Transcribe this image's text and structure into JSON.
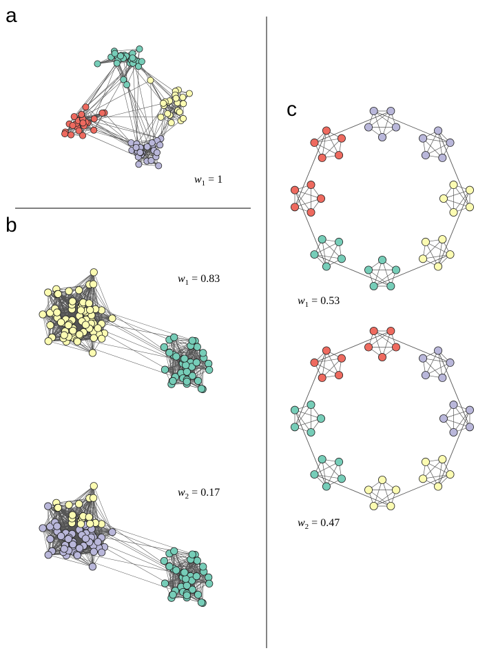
{
  "panels": {
    "a": {
      "letter": "a",
      "w_label": "w",
      "w_sub": "1",
      "w_value": " = 1"
    },
    "b": {
      "letter": "b",
      "top": {
        "w_label": "w",
        "w_sub": "1",
        "w_value": " = 0.83"
      },
      "bottom": {
        "w_label": "w",
        "w_sub": "2",
        "w_value": " = 0.17"
      }
    },
    "c": {
      "letter": "c",
      "top": {
        "w_label": "w",
        "w_sub": "1",
        "w_value": " = 0.53"
      },
      "bottom": {
        "w_label": "w",
        "w_sub": "2",
        "w_value": " = 0.47"
      }
    }
  },
  "colors": {
    "red": "#ee6a5f",
    "teal": "#76cdb8",
    "yellow": "#fcfcb2",
    "purple": "#b9b7da",
    "edge": "#555555",
    "node_stroke": "#222222"
  },
  "rings": {
    "top": [
      "purple",
      "purple",
      "yellow",
      "yellow",
      "teal",
      "teal",
      "red",
      "red"
    ],
    "bottom": [
      "red",
      "purple",
      "purple",
      "yellow",
      "yellow",
      "teal",
      "teal",
      "red"
    ]
  }
}
